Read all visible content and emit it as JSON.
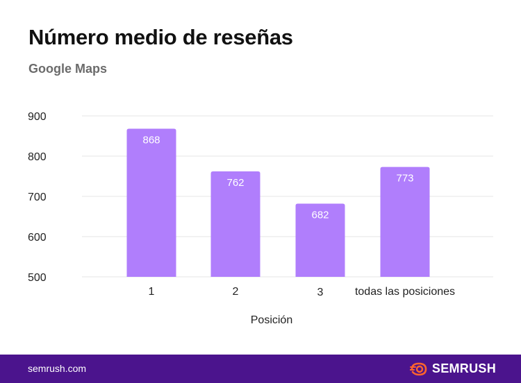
{
  "header": {
    "title": "Número medio de reseñas",
    "subtitle": "Google Maps"
  },
  "footer": {
    "url": "semrush.com",
    "brand": "SEMRUSH"
  },
  "colors": {
    "bar": "#b07efc",
    "grid": "#e6e6e6",
    "footer": "#4b148d",
    "brand_icon": "#ff642d"
  },
  "chart_data": {
    "type": "bar",
    "categories": [
      "1",
      "2",
      "3",
      "todas las posiciones"
    ],
    "values": [
      868,
      762,
      682,
      773
    ],
    "xlabel": "Posición",
    "ylabel": "",
    "ylim": [
      500,
      900
    ],
    "yticks": [
      500,
      600,
      700,
      800,
      900
    ],
    "grid": true,
    "data_labels": true
  }
}
